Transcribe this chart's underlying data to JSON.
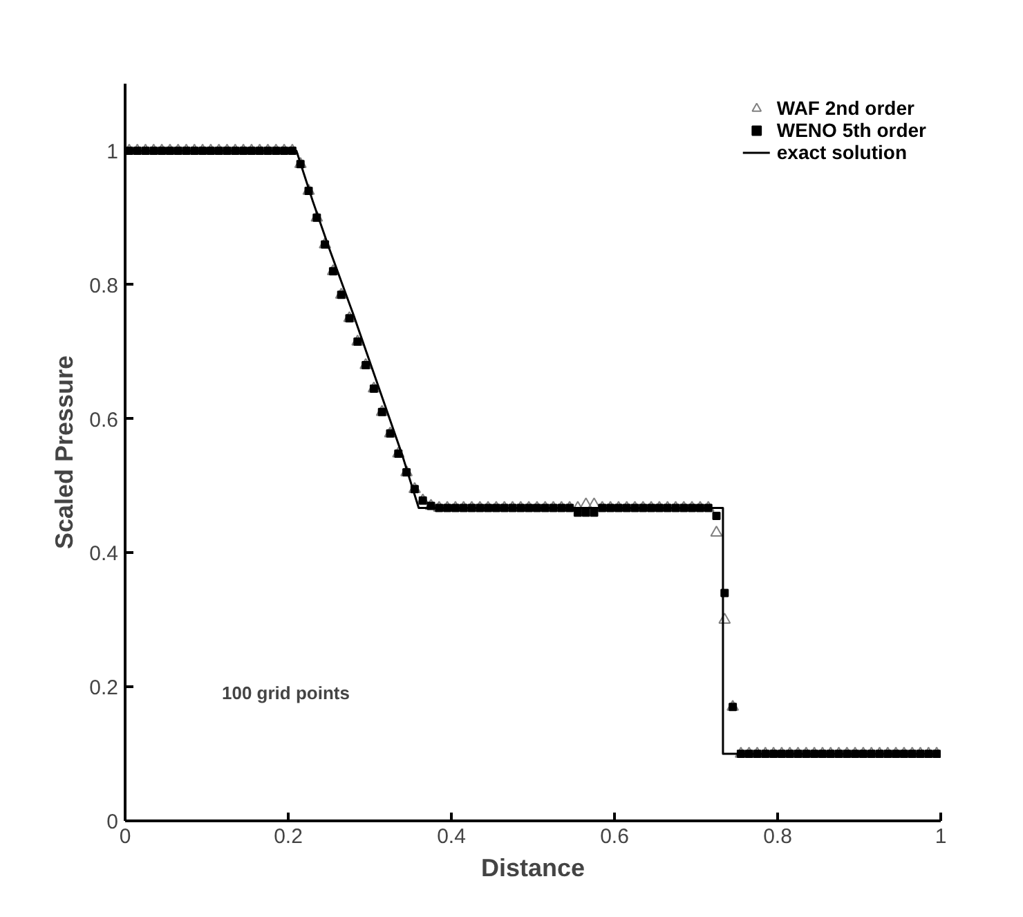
{
  "chart_data": {
    "type": "scatter",
    "xlabel": "Distance",
    "ylabel": "Scaled Pressure",
    "annotations": [
      "100 grid points"
    ],
    "x": [
      0.005,
      0.015,
      0.025,
      0.035,
      0.045,
      0.055,
      0.065,
      0.075,
      0.085,
      0.095,
      0.105,
      0.115,
      0.125,
      0.135,
      0.145,
      0.155,
      0.165,
      0.175,
      0.185,
      0.195,
      0.205,
      0.215,
      0.225,
      0.235,
      0.245,
      0.255,
      0.265,
      0.275,
      0.285,
      0.295,
      0.305,
      0.315,
      0.325,
      0.335,
      0.345,
      0.355,
      0.365,
      0.375,
      0.385,
      0.395,
      0.405,
      0.415,
      0.425,
      0.435,
      0.445,
      0.455,
      0.465,
      0.475,
      0.485,
      0.495,
      0.505,
      0.515,
      0.525,
      0.535,
      0.545,
      0.555,
      0.565,
      0.575,
      0.585,
      0.595,
      0.605,
      0.615,
      0.625,
      0.635,
      0.645,
      0.655,
      0.665,
      0.675,
      0.685,
      0.695,
      0.705,
      0.715,
      0.725,
      0.735,
      0.745,
      0.755,
      0.765,
      0.775,
      0.785,
      0.795,
      0.805,
      0.815,
      0.825,
      0.835,
      0.845,
      0.855,
      0.865,
      0.875,
      0.885,
      0.895,
      0.905,
      0.915,
      0.925,
      0.935,
      0.945,
      0.955,
      0.965,
      0.975,
      0.985,
      0.995
    ],
    "series": [
      {
        "name": "WAF 2nd order",
        "marker": "triangle",
        "color": "#808080",
        "values": [
          1,
          1,
          1,
          1,
          1,
          1,
          1,
          1,
          1,
          1,
          1,
          1,
          1,
          1,
          1,
          1,
          1,
          1,
          1,
          1,
          1,
          0.98,
          0.94,
          0.9,
          0.86,
          0.82,
          0.785,
          0.75,
          0.715,
          0.68,
          0.645,
          0.61,
          0.578,
          0.548,
          0.52,
          0.495,
          0.478,
          0.47,
          0.467,
          0.467,
          0.467,
          0.467,
          0.467,
          0.467,
          0.467,
          0.467,
          0.467,
          0.467,
          0.467,
          0.467,
          0.467,
          0.467,
          0.467,
          0.467,
          0.467,
          0.467,
          0.472,
          0.472,
          0.467,
          0.467,
          0.467,
          0.467,
          0.467,
          0.467,
          0.467,
          0.467,
          0.467,
          0.467,
          0.467,
          0.467,
          0.467,
          0.467,
          0.43,
          0.3,
          0.17,
          0.1,
          0.1,
          0.1,
          0.1,
          0.1,
          0.1,
          0.1,
          0.1,
          0.1,
          0.1,
          0.1,
          0.1,
          0.1,
          0.1,
          0.1,
          0.1,
          0.1,
          0.1,
          0.1,
          0.1,
          0.1,
          0.1,
          0.1,
          0.1,
          0.1
        ]
      },
      {
        "name": "WENO 5th order",
        "marker": "square",
        "color": "#000000",
        "values": [
          1,
          1,
          1,
          1,
          1,
          1,
          1,
          1,
          1,
          1,
          1,
          1,
          1,
          1,
          1,
          1,
          1,
          1,
          1,
          1,
          1,
          0.98,
          0.94,
          0.9,
          0.86,
          0.82,
          0.785,
          0.75,
          0.715,
          0.68,
          0.645,
          0.61,
          0.578,
          0.548,
          0.52,
          0.495,
          0.478,
          0.47,
          0.467,
          0.467,
          0.467,
          0.467,
          0.467,
          0.467,
          0.467,
          0.467,
          0.467,
          0.467,
          0.467,
          0.467,
          0.467,
          0.467,
          0.467,
          0.467,
          0.467,
          0.46,
          0.46,
          0.46,
          0.467,
          0.467,
          0.467,
          0.467,
          0.467,
          0.467,
          0.467,
          0.467,
          0.467,
          0.467,
          0.467,
          0.467,
          0.467,
          0.467,
          0.455,
          0.34,
          0.17,
          0.1,
          0.1,
          0.1,
          0.1,
          0.1,
          0.1,
          0.1,
          0.1,
          0.1,
          0.1,
          0.1,
          0.1,
          0.1,
          0.1,
          0.1,
          0.1,
          0.1,
          0.1,
          0.1,
          0.1,
          0.1,
          0.1,
          0.1,
          0.1,
          0.1
        ]
      },
      {
        "name": "exact solution",
        "type": "line",
        "marker": "none",
        "color": "#000000",
        "x": [
          0,
          0.21,
          0.23,
          0.25,
          0.28,
          0.31,
          0.34,
          0.36,
          0.733,
          0.733,
          1
        ],
        "values": [
          1,
          1,
          0.925,
          0.855,
          0.755,
          0.65,
          0.545,
          0.467,
          0.467,
          0.1,
          0.1
        ]
      }
    ],
    "xlim": [
      0,
      1
    ],
    "ylim": [
      0,
      1.1
    ],
    "xticks": [
      0,
      0.2,
      0.4,
      0.6,
      0.8,
      1
    ],
    "yticks": [
      0,
      0.2,
      0.4,
      0.6,
      0.8,
      1
    ],
    "grid": false,
    "legend": "top right"
  }
}
